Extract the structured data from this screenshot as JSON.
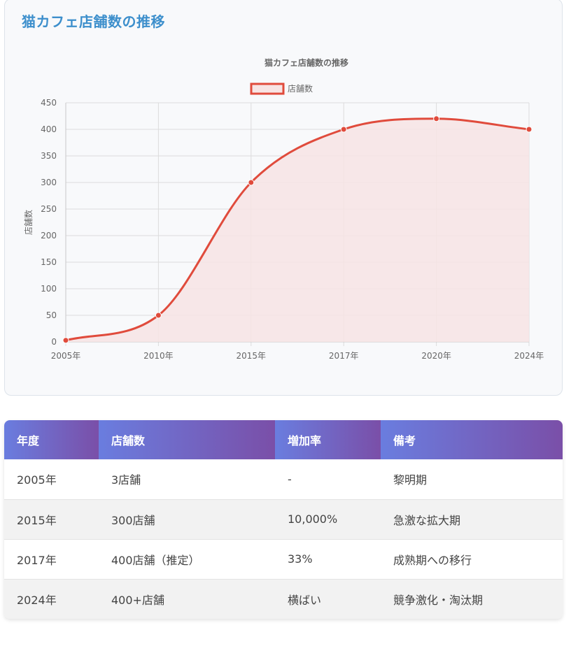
{
  "page": {
    "title": "猫カフェ店舗数の推移"
  },
  "chart_data": {
    "type": "line",
    "title": "猫カフェ店舗数の推移",
    "categories": [
      "2005年",
      "2010年",
      "2015年",
      "2017年",
      "2020年",
      "2024年"
    ],
    "series": [
      {
        "name": "店舗数",
        "values": [
          3,
          50,
          300,
          400,
          420,
          400
        ]
      }
    ],
    "ylabel": "店舗数",
    "xlabel": "",
    "ylim": [
      0,
      450
    ],
    "yticks": [
      0,
      50,
      100,
      150,
      200,
      250,
      300,
      350,
      400,
      450
    ],
    "fill": true,
    "grid": true,
    "legend_position": "top",
    "colors": {
      "line": "#e04b3c",
      "fill": "#f7e4e4"
    }
  },
  "table": {
    "headers": [
      "年度",
      "店舗数",
      "増加率",
      "備考"
    ],
    "rows": [
      [
        "2005年",
        "3店舗",
        "-",
        "黎明期"
      ],
      [
        "2015年",
        "300店舗",
        "10,000%",
        "急激な拡大期"
      ],
      [
        "2017年",
        "400店舗（推定）",
        "33%",
        "成熟期への移行"
      ],
      [
        "2024年",
        "400+店舗",
        "横ばい",
        "競争激化・淘汰期"
      ]
    ]
  }
}
